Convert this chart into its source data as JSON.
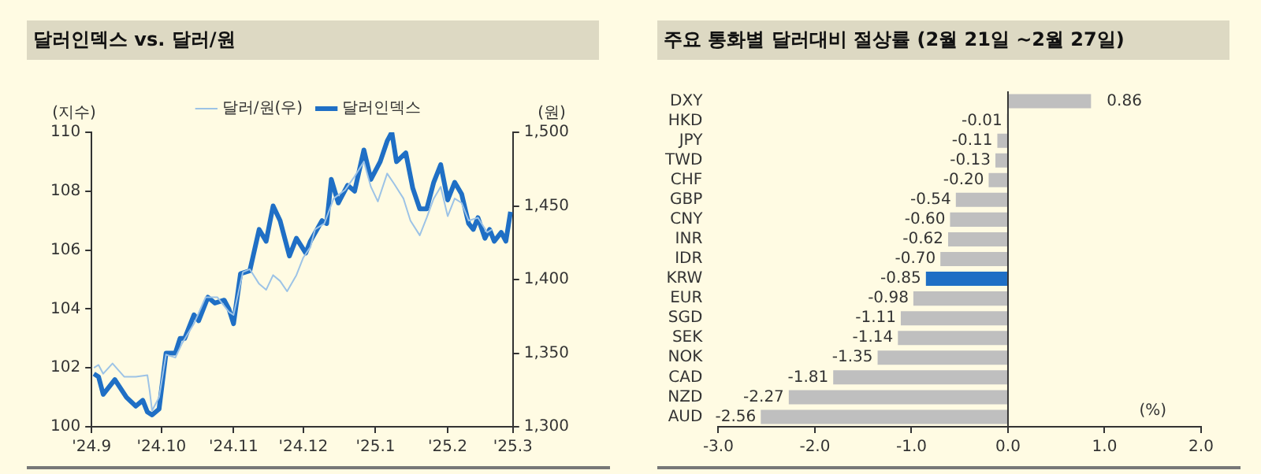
{
  "chart_data": [
    {
      "type": "line",
      "title": "달러인덱스 vs. 달러/원",
      "ylabel": "(지수)",
      "y2label": "(원)",
      "legend": "top",
      "xlim": [
        "2024-09-01",
        "2025-03-01"
      ],
      "xticks": [
        {
          "value": "2024-09-01",
          "label": "'24.9"
        },
        {
          "value": "2024-10-01",
          "label": "'24.10"
        },
        {
          "value": "2024-11-01",
          "label": "'24.11"
        },
        {
          "value": "2024-12-01",
          "label": "'24.12"
        },
        {
          "value": "2025-01-01",
          "label": "'25.1"
        },
        {
          "value": "2025-02-01",
          "label": "'25.2"
        },
        {
          "value": "2025-03-01",
          "label": "'25.3"
        }
      ],
      "ylim": [
        100,
        110
      ],
      "yticks": [
        100,
        102,
        104,
        106,
        108,
        110
      ],
      "y2lim": [
        1300,
        1500
      ],
      "y2ticks": [
        {
          "value": 1300,
          "label": "1,300"
        },
        {
          "value": 1350,
          "label": "1,350"
        },
        {
          "value": 1400,
          "label": "1,400"
        },
        {
          "value": 1450,
          "label": "1,450"
        },
        {
          "value": 1500,
          "label": "1,500"
        }
      ],
      "series": [
        {
          "name": "달러인덱스",
          "color": "#1f6fc5",
          "x": [
            "2024-09-02",
            "2024-09-04",
            "2024-09-06",
            "2024-09-11",
            "2024-09-16",
            "2024-09-20",
            "2024-09-23",
            "2024-09-25",
            "2024-09-27",
            "2024-09-30",
            "2024-10-03",
            "2024-10-07",
            "2024-10-09",
            "2024-10-11",
            "2024-10-15",
            "2024-10-17",
            "2024-10-21",
            "2024-10-24",
            "2024-10-28",
            "2024-10-30",
            "2024-11-01",
            "2024-11-04",
            "2024-11-08",
            "2024-11-12",
            "2024-11-15",
            "2024-11-18",
            "2024-11-21",
            "2024-11-25",
            "2024-11-28",
            "2024-12-02",
            "2024-12-04",
            "2024-12-09",
            "2024-12-11",
            "2024-12-13",
            "2024-12-16",
            "2024-12-20",
            "2024-12-23",
            "2024-12-27",
            "2024-12-30",
            "2025-01-03",
            "2025-01-06",
            "2025-01-08",
            "2025-01-10",
            "2025-01-14",
            "2025-01-17",
            "2025-01-20",
            "2025-01-23",
            "2025-01-26",
            "2025-01-29",
            "2025-02-01",
            "2025-02-04",
            "2025-02-07",
            "2025-02-10",
            "2025-02-12",
            "2025-02-14",
            "2025-02-17",
            "2025-02-19",
            "2025-02-21",
            "2025-02-24",
            "2025-02-26",
            "2025-02-28"
          ],
          "values": [
            101.8,
            101.7,
            101.1,
            101.6,
            101.0,
            100.7,
            100.9,
            100.5,
            100.4,
            100.6,
            102.5,
            102.5,
            103.0,
            103.0,
            103.8,
            103.6,
            104.4,
            104.2,
            104.3,
            104.0,
            103.5,
            105.2,
            105.3,
            106.7,
            106.3,
            107.5,
            107.0,
            105.8,
            106.4,
            105.9,
            106.3,
            107.0,
            106.9,
            108.4,
            107.6,
            108.2,
            108.0,
            109.4,
            108.4,
            109.0,
            109.7,
            110.0,
            109.0,
            109.3,
            108.1,
            107.4,
            107.4,
            108.3,
            108.9,
            107.7,
            108.3,
            107.9,
            106.9,
            106.7,
            107.1,
            106.4,
            106.7,
            106.3,
            106.6,
            106.3,
            107.3
          ]
        },
        {
          "name": "달러/원(우)",
          "color": "#9dc3e6",
          "axis": "y2",
          "x": [
            "2024-09-02",
            "2024-09-04",
            "2024-09-06",
            "2024-09-10",
            "2024-09-15",
            "2024-09-20",
            "2024-09-25",
            "2024-09-26",
            "2024-09-27",
            "2024-09-30",
            "2024-10-03",
            "2024-10-07",
            "2024-10-10",
            "2024-10-15",
            "2024-10-20",
            "2024-10-25",
            "2024-10-30",
            "2024-11-01",
            "2024-11-05",
            "2024-11-08",
            "2024-11-12",
            "2024-11-15",
            "2024-11-18",
            "2024-11-21",
            "2024-11-24",
            "2024-11-28",
            "2024-12-01",
            "2024-12-04",
            "2024-12-06",
            "2024-12-10",
            "2024-12-14",
            "2024-12-19",
            "2024-12-23",
            "2024-12-27",
            "2024-12-30",
            "2025-01-02",
            "2025-01-06",
            "2025-01-09",
            "2025-01-13",
            "2025-01-16",
            "2025-01-20",
            "2025-01-23",
            "2025-01-26",
            "2025-01-29",
            "2025-02-01",
            "2025-02-04",
            "2025-02-07",
            "2025-02-10",
            "2025-02-14",
            "2025-02-18",
            "2025-02-20"
          ],
          "values": [
            1340,
            1342,
            1336,
            1343,
            1334,
            1334,
            1335,
            1324,
            1311,
            1320,
            1349,
            1347,
            1357,
            1370,
            1388,
            1388,
            1378,
            1376,
            1405,
            1407,
            1397,
            1393,
            1403,
            1399,
            1392,
            1403,
            1415,
            1422,
            1434,
            1438,
            1455,
            1461,
            1470,
            1480,
            1463,
            1453,
            1472,
            1465,
            1455,
            1440,
            1430,
            1442,
            1455,
            1463,
            1443,
            1455,
            1452,
            1440,
            1442,
            1432,
            1434
          ]
        }
      ]
    },
    {
      "type": "bar",
      "orientation": "horizontal",
      "title": "주요 통화별 달러대비 절상률 (2월 21일 ~2월 27일)",
      "xlabel": "(%)",
      "categories": [
        "DXY",
        "HKD",
        "JPY",
        "TWD",
        "CHF",
        "GBP",
        "CNY",
        "INR",
        "IDR",
        "KRW",
        "EUR",
        "SGD",
        "SEK",
        "NOK",
        "CAD",
        "NZD",
        "AUD"
      ],
      "values": [
        0.86,
        -0.01,
        -0.11,
        -0.13,
        -0.2,
        -0.54,
        -0.6,
        -0.62,
        -0.7,
        -0.85,
        -0.98,
        -1.11,
        -1.14,
        -1.35,
        -1.81,
        -2.27,
        -2.56
      ],
      "value_labels": [
        "0.86",
        "-0.01",
        "-0.11",
        "-0.13",
        "-0.20",
        "-0.54",
        "-0.60",
        "-0.62",
        "-0.70",
        "-0.85",
        "-0.98",
        "-1.11",
        "-1.14",
        "-1.35",
        "-1.81",
        "-2.27",
        "-2.56"
      ],
      "colors": [
        "#bfbfbf",
        "#bfbfbf",
        "#bfbfbf",
        "#bfbfbf",
        "#bfbfbf",
        "#bfbfbf",
        "#bfbfbf",
        "#bfbfbf",
        "#bfbfbf",
        "#1f6fc5",
        "#bfbfbf",
        "#bfbfbf",
        "#bfbfbf",
        "#bfbfbf",
        "#bfbfbf",
        "#bfbfbf",
        "#bfbfbf"
      ],
      "xlim": [
        -3,
        2
      ],
      "xticks": [
        {
          "value": -3,
          "label": "-3.0"
        },
        {
          "value": -2,
          "label": "-2.0"
        },
        {
          "value": -1,
          "label": "-1.0"
        },
        {
          "value": 0,
          "label": "0.0"
        },
        {
          "value": 1,
          "label": "1.0"
        },
        {
          "value": 2,
          "label": "2.0"
        }
      ]
    }
  ]
}
